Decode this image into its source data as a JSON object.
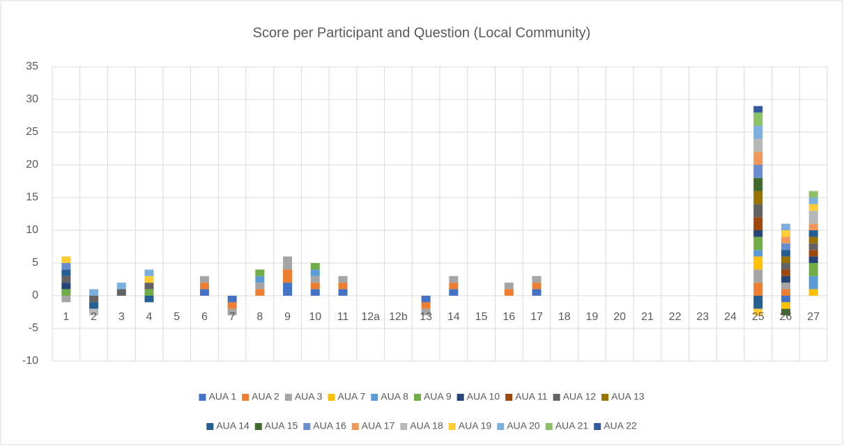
{
  "chart_data": {
    "type": "stacked_bar",
    "title": "Score per Participant and Question (Local Community)",
    "categories": [
      "1",
      "2",
      "3",
      "4",
      "5",
      "6",
      "7",
      "8",
      "9",
      "10",
      "11",
      "12a",
      "12b",
      "13",
      "14",
      "15",
      "16",
      "17",
      "18",
      "19",
      "20",
      "21",
      "22",
      "23",
      "24",
      "25",
      "26",
      "27"
    ],
    "ylim": [
      -10,
      35
    ],
    "yticks": [
      -10,
      -5,
      0,
      5,
      10,
      15,
      20,
      25,
      30,
      35
    ],
    "grid": true,
    "legend": "bottom",
    "series": [
      {
        "name": "AUA 1",
        "color": "#4472c4",
        "values": [
          null,
          null,
          null,
          null,
          null,
          1,
          -1,
          null,
          2,
          1,
          1,
          null,
          null,
          -1,
          1,
          null,
          null,
          1,
          null,
          null,
          null,
          null,
          null,
          null,
          null,
          null,
          -1,
          null
        ]
      },
      {
        "name": "AUA 2",
        "color": "#ed7d31",
        "values": [
          null,
          null,
          null,
          null,
          null,
          1,
          -1,
          1,
          2,
          1,
          1,
          null,
          null,
          -1,
          1,
          null,
          1,
          1,
          null,
          null,
          null,
          null,
          null,
          null,
          null,
          2,
          1,
          null
        ]
      },
      {
        "name": "AUA 3",
        "color": "#a5a5a5",
        "values": [
          -1,
          null,
          null,
          null,
          null,
          1,
          -1,
          1,
          2,
          1,
          1,
          null,
          null,
          -1,
          1,
          null,
          1,
          1,
          null,
          null,
          null,
          null,
          null,
          null,
          null,
          2,
          1,
          null
        ]
      },
      {
        "name": "AUA 7",
        "color": "#ffc000",
        "values": [
          null,
          null,
          null,
          null,
          null,
          null,
          null,
          null,
          null,
          null,
          null,
          null,
          null,
          null,
          null,
          null,
          null,
          null,
          null,
          null,
          null,
          null,
          null,
          null,
          null,
          2,
          -1,
          1
        ]
      },
      {
        "name": "AUA 8",
        "color": "#5b9bd5",
        "values": [
          null,
          null,
          null,
          null,
          null,
          null,
          null,
          1,
          null,
          1,
          null,
          null,
          null,
          null,
          null,
          null,
          null,
          null,
          null,
          null,
          null,
          null,
          null,
          null,
          null,
          1,
          null,
          2
        ]
      },
      {
        "name": "AUA 9",
        "color": "#70ad47",
        "values": [
          1,
          null,
          null,
          1,
          null,
          null,
          null,
          1,
          null,
          1,
          null,
          null,
          null,
          null,
          null,
          null,
          null,
          null,
          null,
          null,
          null,
          null,
          null,
          null,
          null,
          2,
          null,
          2
        ]
      },
      {
        "name": "AUA 10",
        "color": "#264478",
        "values": [
          1,
          null,
          null,
          null,
          null,
          null,
          null,
          null,
          null,
          null,
          null,
          null,
          null,
          null,
          null,
          null,
          null,
          null,
          null,
          null,
          null,
          null,
          null,
          null,
          null,
          1,
          1,
          1
        ]
      },
      {
        "name": "AUA 11",
        "color": "#9e480e",
        "values": [
          null,
          null,
          null,
          null,
          null,
          null,
          null,
          null,
          null,
          null,
          null,
          null,
          null,
          null,
          null,
          null,
          null,
          null,
          null,
          null,
          null,
          null,
          null,
          null,
          null,
          2,
          1,
          1
        ]
      },
      {
        "name": "AUA 12",
        "color": "#636363",
        "values": [
          1,
          -1,
          1,
          1,
          null,
          null,
          null,
          null,
          null,
          null,
          null,
          null,
          null,
          null,
          null,
          null,
          null,
          null,
          null,
          null,
          null,
          null,
          null,
          null,
          null,
          2,
          1,
          1
        ]
      },
      {
        "name": "AUA 13",
        "color": "#997300",
        "values": [
          null,
          null,
          null,
          null,
          null,
          null,
          null,
          null,
          null,
          null,
          null,
          null,
          null,
          null,
          null,
          null,
          null,
          null,
          null,
          null,
          null,
          null,
          null,
          null,
          null,
          2,
          1,
          1
        ]
      },
      {
        "name": "AUA 14",
        "color": "#255e91",
        "values": [
          1,
          -1,
          null,
          -1,
          null,
          null,
          null,
          null,
          null,
          null,
          null,
          null,
          null,
          null,
          null,
          null,
          null,
          null,
          null,
          null,
          null,
          null,
          null,
          null,
          null,
          -2,
          1,
          1
        ]
      },
      {
        "name": "AUA 15",
        "color": "#43682b",
        "values": [
          null,
          null,
          null,
          null,
          null,
          null,
          null,
          null,
          null,
          null,
          null,
          null,
          null,
          null,
          null,
          null,
          null,
          null,
          null,
          null,
          null,
          null,
          null,
          null,
          null,
          2,
          -1,
          null
        ]
      },
      {
        "name": "AUA 16",
        "color": "#698ed0",
        "values": [
          1,
          null,
          null,
          null,
          null,
          null,
          null,
          null,
          null,
          null,
          null,
          null,
          null,
          null,
          null,
          null,
          null,
          null,
          null,
          null,
          null,
          null,
          null,
          null,
          null,
          2,
          1,
          null
        ]
      },
      {
        "name": "AUA 17",
        "color": "#f1975a",
        "values": [
          null,
          null,
          null,
          null,
          null,
          null,
          null,
          null,
          null,
          null,
          null,
          null,
          null,
          null,
          null,
          null,
          null,
          null,
          null,
          null,
          null,
          null,
          null,
          null,
          null,
          2,
          1,
          1
        ]
      },
      {
        "name": "AUA 18",
        "color": "#b7b7b7",
        "values": [
          null,
          -1,
          null,
          null,
          null,
          null,
          null,
          null,
          null,
          null,
          null,
          null,
          null,
          null,
          null,
          null,
          null,
          null,
          null,
          null,
          null,
          null,
          null,
          null,
          null,
          2,
          null,
          2
        ]
      },
      {
        "name": "AUA 19",
        "color": "#ffcd33",
        "values": [
          1,
          null,
          null,
          1,
          null,
          null,
          null,
          null,
          null,
          null,
          null,
          null,
          null,
          null,
          null,
          null,
          null,
          null,
          null,
          null,
          null,
          null,
          null,
          null,
          null,
          -1,
          1,
          1
        ]
      },
      {
        "name": "AUA 20",
        "color": "#7cafdd",
        "values": [
          null,
          1,
          1,
          1,
          null,
          null,
          null,
          null,
          null,
          null,
          null,
          null,
          null,
          null,
          null,
          null,
          null,
          null,
          null,
          null,
          null,
          null,
          null,
          null,
          null,
          2,
          1,
          1
        ]
      },
      {
        "name": "AUA 21",
        "color": "#8cc168",
        "values": [
          null,
          null,
          null,
          null,
          null,
          null,
          null,
          null,
          null,
          null,
          null,
          null,
          null,
          null,
          null,
          null,
          null,
          null,
          null,
          null,
          null,
          null,
          null,
          null,
          null,
          2,
          null,
          1
        ]
      },
      {
        "name": "AUA 22",
        "color": "#335aa1",
        "values": [
          null,
          null,
          null,
          null,
          null,
          null,
          null,
          null,
          null,
          null,
          null,
          null,
          null,
          null,
          null,
          null,
          null,
          null,
          null,
          null,
          null,
          null,
          null,
          null,
          null,
          1,
          null,
          null
        ]
      }
    ]
  }
}
